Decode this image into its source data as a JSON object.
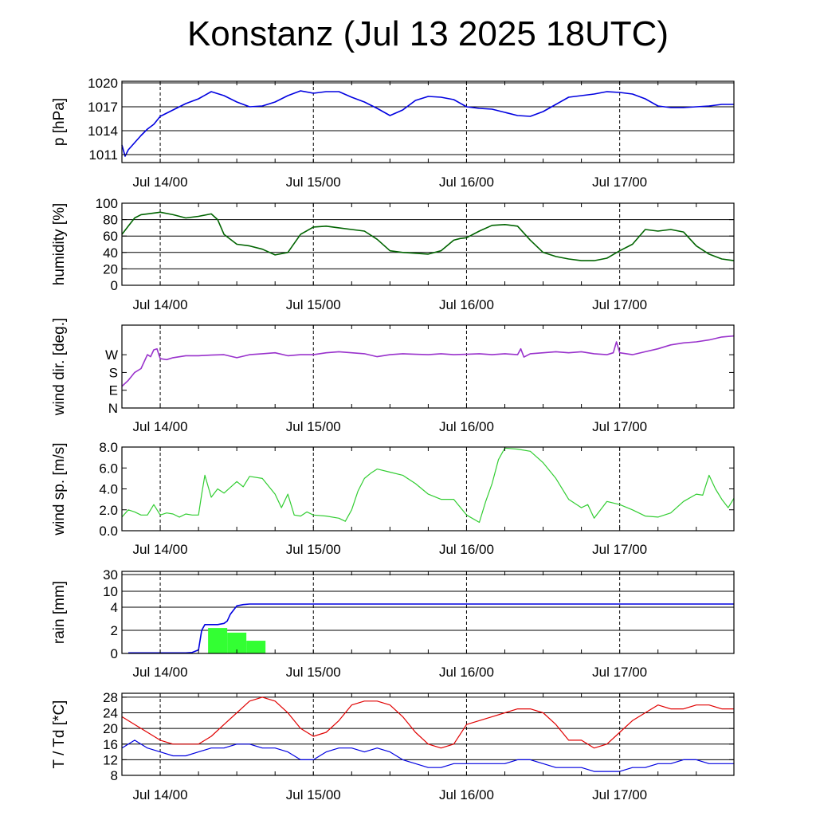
{
  "title": "Konstanz (Jul 13 2025 18UTC)",
  "x_tick_labels": [
    "Jul 14/00",
    "Jul 15/00",
    "Jul 16/00",
    "Jul 17/00"
  ],
  "chart_data": [
    {
      "id": "pressure",
      "type": "line",
      "ylabel": "p [hPa]",
      "ylim": [
        1010,
        1020.2
      ],
      "yticks": [
        1011,
        1014,
        1017,
        1020
      ],
      "ytick_labels": [
        "1011",
        "1014",
        "1017",
        "1020"
      ],
      "grid": true,
      "color": "#0000e0",
      "series": [
        {
          "x": [
            0,
            0.5,
            1,
            2,
            3,
            4,
            5,
            6,
            8,
            10,
            12,
            14,
            16,
            18,
            20,
            22,
            24,
            26,
            28,
            30,
            32,
            34,
            36,
            38,
            40,
            42,
            44,
            46,
            48,
            50,
            52,
            54,
            56,
            58,
            60,
            62,
            64,
            66,
            68,
            70,
            72,
            74,
            76,
            78,
            80,
            82,
            84,
            86,
            88,
            90,
            92,
            94,
            95.9
          ],
          "y": [
            1012.2,
            1010.8,
            1011.6,
            1012.5,
            1013.4,
            1014.2,
            1014.8,
            1015.8,
            1016.6,
            1017.4,
            1018.0,
            1018.9,
            1018.4,
            1017.6,
            1017.0,
            1017.1,
            1017.6,
            1018.4,
            1019.0,
            1018.7,
            1018.9,
            1018.9,
            1018.2,
            1017.6,
            1016.8,
            1015.9,
            1016.6,
            1017.8,
            1018.3,
            1018.2,
            1017.9,
            1017.0,
            1016.8,
            1016.7,
            1016.3,
            1015.9,
            1015.8,
            1016.4,
            1017.3,
            1018.2,
            1018.4,
            1018.6,
            1018.9,
            1018.8,
            1018.6,
            1018.0,
            1017.1,
            1016.9,
            1016.9,
            1017.0,
            1017.1,
            1017.3,
            1017.3
          ]
        }
      ]
    },
    {
      "id": "humidity",
      "type": "line",
      "ylabel": "humidity [%]",
      "ylim": [
        0,
        100
      ],
      "yticks": [
        0,
        20,
        40,
        60,
        80,
        100
      ],
      "ytick_labels": [
        "0",
        "20",
        "40",
        "60",
        "80",
        "100"
      ],
      "grid": true,
      "color": "#006400",
      "series": [
        {
          "x": [
            0,
            1,
            2,
            3,
            4,
            6,
            8,
            10,
            12,
            14,
            15,
            16,
            18,
            20,
            22,
            24,
            26,
            28,
            30,
            32,
            34,
            36,
            38,
            40,
            42,
            44,
            46,
            48,
            50,
            52,
            53,
            54,
            56,
            58,
            60,
            62,
            64,
            66,
            68,
            70,
            72,
            74,
            76,
            78,
            80,
            82,
            84,
            86,
            88,
            90,
            92,
            94,
            95.9
          ],
          "y": [
            62,
            72,
            82,
            86,
            87,
            89,
            86,
            82,
            84,
            87,
            80,
            62,
            50,
            48,
            44,
            37,
            40,
            62,
            71,
            72,
            70,
            68,
            66,
            56,
            42,
            40,
            39,
            38,
            42,
            55,
            57,
            58,
            66,
            73,
            74,
            72,
            55,
            40,
            35,
            32,
            30,
            30,
            33,
            42,
            50,
            68,
            66,
            68,
            65,
            48,
            38,
            32,
            30
          ]
        }
      ]
    },
    {
      "id": "wind_direction",
      "type": "line",
      "ylabel": "wind dir. [deg.]",
      "ylim": [
        0,
        420
      ],
      "yticks": [
        0,
        90,
        180,
        270
      ],
      "ytick_labels": [
        "N",
        "E",
        "S",
        "W"
      ],
      "grid": false,
      "color": "#9932cc",
      "series": [
        {
          "x": [
            0,
            1,
            2,
            3,
            4,
            4.5,
            5,
            5.5,
            6,
            7,
            8,
            10,
            12,
            14,
            16,
            18,
            20,
            22,
            24,
            26,
            28,
            30,
            32,
            34,
            36,
            38,
            40,
            42,
            44,
            46,
            48,
            50,
            52,
            54,
            56,
            58,
            60,
            62,
            62.5,
            63,
            64,
            66,
            68,
            70,
            72,
            74,
            76,
            77,
            77.5,
            78,
            80,
            82,
            84,
            86,
            88,
            90,
            92,
            94,
            95.9
          ],
          "y": [
            110,
            140,
            180,
            200,
            270,
            260,
            295,
            300,
            250,
            245,
            255,
            265,
            265,
            268,
            270,
            255,
            270,
            275,
            280,
            265,
            270,
            270,
            280,
            285,
            280,
            275,
            260,
            270,
            275,
            272,
            270,
            275,
            270,
            272,
            275,
            270,
            275,
            270,
            300,
            258,
            275,
            280,
            285,
            280,
            285,
            275,
            270,
            280,
            335,
            280,
            270,
            285,
            300,
            320,
            330,
            335,
            345,
            360,
            365
          ]
        }
      ]
    },
    {
      "id": "wind_speed",
      "type": "line",
      "ylabel": "wind sp. [m/s]",
      "ylim": [
        0,
        8.0
      ],
      "yticks": [
        0,
        2,
        4,
        6,
        8
      ],
      "ytick_labels": [
        "0.0",
        "2.0",
        "4.0",
        "6.0",
        "8.0"
      ],
      "grid": false,
      "color": "#32cd32",
      "series": [
        {
          "x": [
            0,
            1,
            2,
            3,
            4,
            5,
            6,
            7,
            8,
            9,
            10,
            11,
            12,
            12.5,
            13,
            14,
            15,
            16,
            18,
            19,
            20,
            22,
            24,
            25,
            26,
            27,
            28,
            29,
            30,
            32,
            34,
            35,
            36,
            37,
            38,
            39,
            40,
            42,
            44,
            46,
            48,
            50,
            52,
            54,
            56,
            57,
            58,
            59,
            60,
            62,
            64,
            66,
            68,
            70,
            72,
            73,
            74,
            76,
            78,
            80,
            82,
            84,
            86,
            88,
            90,
            91,
            92,
            93,
            94,
            95,
            95.9
          ],
          "y": [
            1.3,
            2.0,
            1.8,
            1.5,
            1.5,
            2.5,
            1.5,
            1.7,
            1.6,
            1.3,
            1.6,
            1.5,
            1.5,
            3.5,
            5.3,
            3.2,
            4.0,
            3.6,
            4.7,
            4.2,
            5.2,
            5.0,
            3.5,
            2.2,
            3.5,
            1.5,
            1.4,
            1.8,
            1.5,
            1.4,
            1.2,
            0.9,
            2.0,
            3.8,
            5.0,
            5.5,
            5.9,
            5.6,
            5.3,
            4.5,
            3.5,
            3.0,
            3.0,
            1.5,
            0.8,
            2.8,
            4.5,
            6.8,
            7.9,
            7.8,
            7.6,
            6.5,
            5.0,
            3.0,
            2.2,
            2.5,
            1.2,
            2.8,
            2.5,
            2.0,
            1.4,
            1.3,
            1.7,
            2.8,
            3.5,
            3.4,
            5.3,
            4.0,
            3.0,
            2.2,
            3.1
          ]
        }
      ]
    },
    {
      "id": "rain",
      "type": "bar",
      "ylabel": "rain [mm]",
      "yticks": [
        0,
        2,
        4,
        10,
        30
      ],
      "ytick_labels": [
        "0",
        "2",
        "4",
        "10",
        "30"
      ],
      "scale": "nonlinear",
      "grid": true,
      "bar_color": "#33ff33",
      "line_color": "#0000e0",
      "bars": [
        {
          "x_start": 13.5,
          "x_end": 16.5,
          "value": 2.2
        },
        {
          "x_start": 16.5,
          "x_end": 19.5,
          "value": 1.8
        },
        {
          "x_start": 19.5,
          "x_end": 22.5,
          "value": 1.1
        }
      ],
      "series": [
        {
          "name": "accumulated",
          "x": [
            1,
            10,
            11,
            12,
            12.5,
            13,
            13.5,
            14,
            15,
            16,
            16.5,
            17,
            18,
            19,
            20,
            21,
            22,
            30,
            50,
            70,
            95.9
          ],
          "y": [
            0.05,
            0.05,
            0.08,
            0.3,
            2.0,
            2.5,
            2.5,
            2.5,
            2.5,
            2.6,
            2.8,
            3.4,
            4.5,
            5.0,
            5.2,
            5.2,
            5.2,
            5.2,
            5.2,
            5.2,
            5.2
          ]
        }
      ]
    },
    {
      "id": "temperature",
      "type": "line",
      "ylabel": "T / Td [*C]",
      "ylim": [
        8,
        29
      ],
      "yticks": [
        8,
        12,
        16,
        20,
        24,
        28
      ],
      "ytick_labels": [
        "8",
        "12",
        "16",
        "20",
        "24",
        "28"
      ],
      "grid": true,
      "series": [
        {
          "color": "#e00000",
          "x": [
            0,
            2,
            4,
            6,
            8,
            10,
            12,
            14,
            16,
            18,
            20,
            22,
            24,
            26,
            28,
            30,
            32,
            34,
            36,
            38,
            40,
            42,
            44,
            46,
            48,
            50,
            52,
            54,
            56,
            58,
            60,
            62,
            64,
            66,
            68,
            70,
            72,
            74,
            76,
            78,
            80,
            82,
            84,
            86,
            88,
            90,
            92,
            94,
            95.9
          ],
          "y": [
            23,
            21,
            19,
            17,
            16,
            16,
            16,
            18,
            21,
            24,
            27,
            28,
            27,
            24,
            20,
            18,
            19,
            22,
            26,
            27,
            27,
            26,
            23,
            19,
            16,
            15,
            16,
            21,
            22,
            23,
            24,
            25,
            25,
            24,
            21,
            17,
            17,
            15,
            16,
            19,
            22,
            24,
            26,
            25,
            25,
            26,
            26,
            25,
            25
          ]
        },
        {
          "color": "#0000e0",
          "x": [
            0,
            2,
            4,
            6,
            8,
            10,
            12,
            14,
            16,
            18,
            20,
            22,
            24,
            26,
            28,
            30,
            32,
            34,
            36,
            38,
            40,
            42,
            44,
            46,
            48,
            50,
            52,
            54,
            56,
            58,
            60,
            62,
            64,
            66,
            68,
            70,
            72,
            74,
            76,
            78,
            80,
            82,
            84,
            86,
            88,
            90,
            92,
            94,
            95.9
          ],
          "y": [
            15,
            17,
            15,
            14,
            13,
            13,
            14,
            15,
            15,
            16,
            16,
            15,
            15,
            14,
            12,
            12,
            14,
            15,
            15,
            14,
            15,
            14,
            12,
            11,
            10,
            10,
            11,
            11,
            11,
            11,
            11,
            12,
            12,
            11,
            10,
            10,
            10,
            9,
            9,
            9,
            10,
            10,
            11,
            11,
            12,
            12,
            11,
            11,
            11
          ]
        }
      ]
    }
  ]
}
